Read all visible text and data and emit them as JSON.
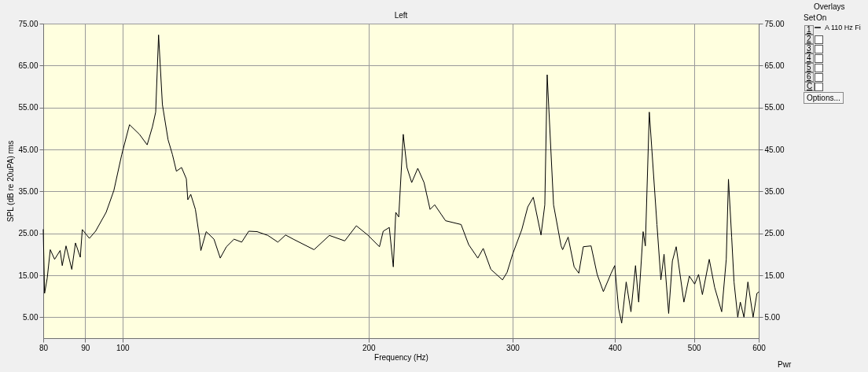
{
  "chart_data": {
    "type": "line",
    "title": "Left",
    "xlabel": "Frequency (Hz)",
    "ylabel": "SPL (dB re 20uPA) rms",
    "legend_title": "Overlays",
    "legend": "top right",
    "log": "x",
    "grid": true,
    "xlim": [
      80,
      600
    ],
    "xticks": [
      80,
      90,
      100,
      200,
      300,
      400,
      500,
      600
    ],
    "ylim": [
      0,
      75
    ],
    "yticks": [
      {
        "value": 5,
        "label": "5.00"
      },
      {
        "value": 15,
        "label": "15.00"
      },
      {
        "value": 25,
        "label": "25.00"
      },
      {
        "value": 35,
        "label": "35.00"
      },
      {
        "value": 45,
        "label": "45.00"
      },
      {
        "value": 55,
        "label": "55.00"
      },
      {
        "value": 65,
        "label": "65.00"
      },
      {
        "value": 75,
        "label": "75.00"
      }
    ],
    "y2lim": [
      0,
      75
    ],
    "y2ticks": [
      {
        "value": 5,
        "label": "5.00"
      },
      {
        "value": 15,
        "label": "15.00"
      },
      {
        "value": 25,
        "label": "25.00"
      },
      {
        "value": 35,
        "label": "35.00"
      },
      {
        "value": 45,
        "label": "45.00"
      },
      {
        "value": 55,
        "label": "55.00"
      },
      {
        "value": 65,
        "label": "65.00"
      },
      {
        "value": 75,
        "label": "75.00"
      }
    ],
    "annotations": [
      "Set",
      "On",
      "1",
      "2",
      "3",
      "4",
      "5",
      "6",
      "C",
      "Options...",
      "Pwr"
    ],
    "series": [
      {
        "name": "A 110 Hz Fi",
        "color": "#000000",
        "x": [
          80,
          80.3,
          80.9,
          81.6,
          82.6,
          83.9,
          84.4,
          85.3,
          86.7,
          87.6,
          88.8,
          89.3,
          91.1,
          92.7,
          95.5,
          97.6,
          99.8,
          102,
          104.9,
          107.2,
          108.8,
          109.8,
          110.7,
          111.9,
          113.7,
          115.1,
          116.4,
          118.1,
          119.7,
          120.2,
          121.2,
          122.8,
          124.2,
          124.7,
          126.6,
          129.4,
          131.7,
          134,
          136.9,
          139.9,
          142.7,
          146.1,
          150.6,
          154.9,
          158.3,
          161.8,
          171.5,
          179.1,
          187,
          193.2,
          199.5,
          206.2,
          208.4,
          212,
          214.4,
          215.9,
          217.7,
          220.5,
          222.8,
          225.8,
          229.7,
          233.8,
          237.8,
          240.9,
          248.4,
          259.5,
          265.1,
          272,
          276.2,
          282.2,
          291.6,
          295.4,
          300,
          307.9,
          313.1,
          318,
          325,
          328.5,
          330.7,
          336.7,
          343.9,
          345.4,
          350.8,
          356.8,
          361.5,
          366.1,
          374.2,
          380.7,
          387.4,
          396,
          400,
          404.3,
          407.9,
          413.1,
          418.7,
          424.1,
          427.9,
          433.3,
          436,
          440.9,
          450.5,
          455.5,
          459.6,
          465.6,
          470.5,
          475.6,
          486,
          493.5,
          501,
          506.5,
          512,
          522,
          530,
          540.6,
          547.6,
          551,
          556,
          559.7,
          565.6,
          569.7,
          575.6,
          582,
          590.6,
          597,
          600
        ],
        "values": [
          25.9,
          10.7,
          14.3,
          21.1,
          18.8,
          20.9,
          17.3,
          22,
          16.4,
          22.7,
          19.3,
          25.9,
          23.8,
          25.5,
          30,
          35.2,
          43.8,
          50.9,
          48.6,
          46.1,
          50.4,
          53.9,
          72.3,
          55.7,
          47.3,
          43.8,
          39.8,
          40.7,
          38,
          33,
          34.3,
          30.7,
          24.1,
          20.9,
          25.4,
          23.6,
          19.1,
          21.8,
          23.6,
          22.9,
          25.5,
          25.4,
          24.5,
          22.9,
          24.6,
          23.6,
          21.1,
          24.5,
          23.2,
          26.8,
          24.6,
          21.8,
          25.5,
          26.4,
          17,
          30,
          28.9,
          48.6,
          40.7,
          37.1,
          40.5,
          37.1,
          30.7,
          31.8,
          28,
          27.1,
          22.3,
          19.1,
          21.4,
          16.4,
          13.9,
          15.7,
          20,
          25.9,
          31.3,
          33.6,
          24.6,
          31.8,
          62.8,
          31.8,
          22,
          21.1,
          24.1,
          17,
          15.5,
          21.8,
          22,
          15.2,
          11.1,
          15.5,
          17.3,
          7.1,
          3.6,
          13.4,
          6.3,
          17.3,
          8.6,
          25.4,
          22,
          53.9,
          27.1,
          13.9,
          20,
          5.9,
          18.4,
          21.8,
          8.6,
          14.8,
          12.9,
          15.2,
          10.4,
          18.8,
          12.1,
          6.3,
          18.8,
          37.9,
          24.1,
          13.4,
          5,
          8.6,
          5,
          13.4,
          5,
          10.7,
          11
        ]
      }
    ]
  }
}
